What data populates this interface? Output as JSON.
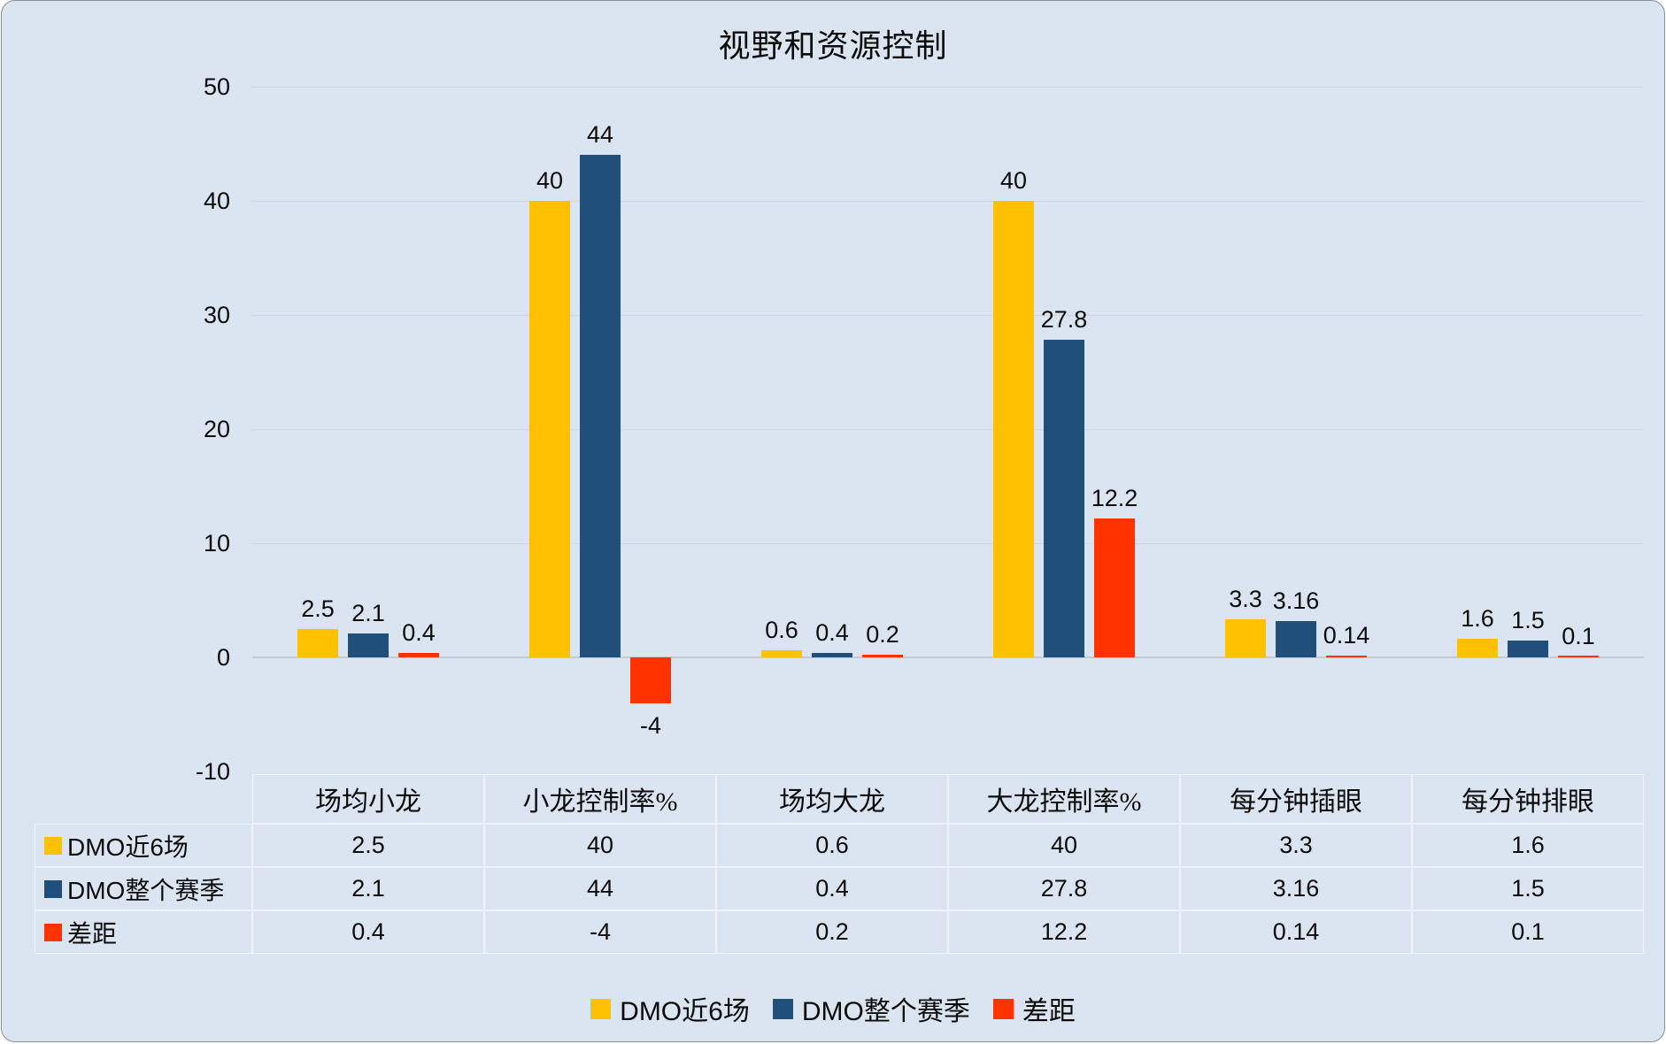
{
  "title": "视野和资源控制",
  "colors": {
    "background": "#dbe5f1",
    "gridline": "#d2d5d9",
    "series1": "#FFC000",
    "series2": "#204F7C",
    "series3": "#FF3300",
    "table_border": "#f0f4fa",
    "text": "#0b0b0b"
  },
  "chart_data": {
    "type": "bar",
    "title": "视野和资源控制",
    "categories": [
      "场均小龙",
      "小龙控制率%",
      "场均大龙",
      "大龙控制率%",
      "每分钟插眼",
      "每分钟排眼"
    ],
    "series": [
      {
        "name": "DMO近6场",
        "color": "#FFC000",
        "values": [
          2.5,
          40,
          0.6,
          40,
          3.3,
          1.6
        ],
        "labels": [
          "2.5",
          "40",
          "0.6",
          "40",
          "3.3",
          "1.6"
        ]
      },
      {
        "name": "DMO整个赛季",
        "color": "#204F7C",
        "values": [
          2.1,
          44,
          0.4,
          27.8,
          3.16,
          1.5
        ],
        "labels": [
          "2.1",
          "44",
          "0.4",
          "27.8",
          "3.16",
          "1.5"
        ]
      },
      {
        "name": "差距",
        "color": "#FF3300",
        "values": [
          0.4,
          -4,
          0.2,
          12.2,
          0.14,
          0.1
        ],
        "labels": [
          "0.4",
          "-4",
          "0.2",
          "12.2",
          "0.14",
          "0.1"
        ]
      }
    ],
    "ylim": [
      -10,
      50
    ],
    "yticks": [
      50,
      40,
      30,
      20,
      10,
      0,
      -10
    ],
    "ytick_labels": [
      "50",
      "40",
      "30",
      "20",
      "10",
      "0",
      "-10"
    ],
    "grid": true,
    "legend_position": "bottom"
  },
  "table": {
    "columns": [
      "场均小龙",
      "小龙控制率%",
      "场均大龙",
      "大龙控制率%",
      "每分钟插眼",
      "每分钟排眼"
    ],
    "rows": [
      {
        "name": "DMO近6场",
        "color": "#FFC000",
        "values": [
          "2.5",
          "40",
          "0.6",
          "40",
          "3.3",
          "1.6"
        ]
      },
      {
        "name": "DMO整个赛季",
        "color": "#204F7C",
        "values": [
          "2.1",
          "44",
          "0.4",
          "27.8",
          "3.16",
          "1.5"
        ]
      },
      {
        "name": "差距",
        "color": "#FF3300",
        "values": [
          "0.4",
          "-4",
          "0.2",
          "12.2",
          "0.14",
          "0.1"
        ]
      }
    ]
  },
  "legend": {
    "items": [
      {
        "label": "DMO近6场",
        "color": "#FFC000"
      },
      {
        "label": "DMO整个赛季",
        "color": "#204F7C"
      },
      {
        "label": "差距",
        "color": "#FF3300"
      }
    ]
  }
}
